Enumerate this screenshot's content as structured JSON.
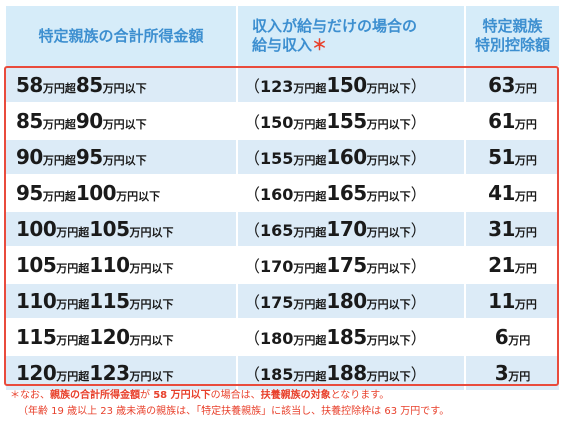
{
  "header": {
    "col1": "特定親族の合計所得金額",
    "col2_line1": "収入が給与だけの場合の",
    "col2_line2": "給与収入",
    "col2_mark": "＊",
    "col3_line1": "特定親族",
    "col3_line2": "特別控除額"
  },
  "units": {
    "over": "万円超",
    "under": "万円以下",
    "man": "万円",
    "open": "（",
    "close": "）"
  },
  "rows": [
    {
      "inc_from": "58",
      "inc_to": "85",
      "sal_from": "123",
      "sal_to": "150",
      "ded": "63"
    },
    {
      "inc_from": "85",
      "inc_to": "90",
      "sal_from": "150",
      "sal_to": "155",
      "ded": "61"
    },
    {
      "inc_from": "90",
      "inc_to": "95",
      "sal_from": "155",
      "sal_to": "160",
      "ded": "51"
    },
    {
      "inc_from": "95",
      "inc_to": "100",
      "sal_from": "160",
      "sal_to": "165",
      "ded": "41"
    },
    {
      "inc_from": "100",
      "inc_to": "105",
      "sal_from": "165",
      "sal_to": "170",
      "ded": "31"
    },
    {
      "inc_from": "105",
      "inc_to": "110",
      "sal_from": "170",
      "sal_to": "175",
      "ded": "21"
    },
    {
      "inc_from": "110",
      "inc_to": "115",
      "sal_from": "175",
      "sal_to": "180",
      "ded": "11"
    },
    {
      "inc_from": "115",
      "inc_to": "120",
      "sal_from": "180",
      "sal_to": "185",
      "ded": "6"
    },
    {
      "inc_from": "120",
      "inc_to": "123",
      "sal_from": "185",
      "sal_to": "188",
      "ded": "3"
    }
  ],
  "notes": {
    "n1_a": "＊なお、",
    "n1_b": "親族の合計所得金額",
    "n1_c": "が ",
    "n1_d": "58 万円以下",
    "n1_e": "の場合は、",
    "n1_f": "扶養親族の対象",
    "n1_g": "となります。",
    "n2": "（年齢 19 歳以上 23 歳未満の親族は、「特定扶養親族」に該当し、扶養控除枠は 63 万円です。"
  },
  "colors": {
    "header_bg": "#d6ecf9",
    "header_text": "#3d8fd0",
    "row_alt": "#dcebf7",
    "frame": "#e94b3c",
    "note": "#e8412c"
  }
}
